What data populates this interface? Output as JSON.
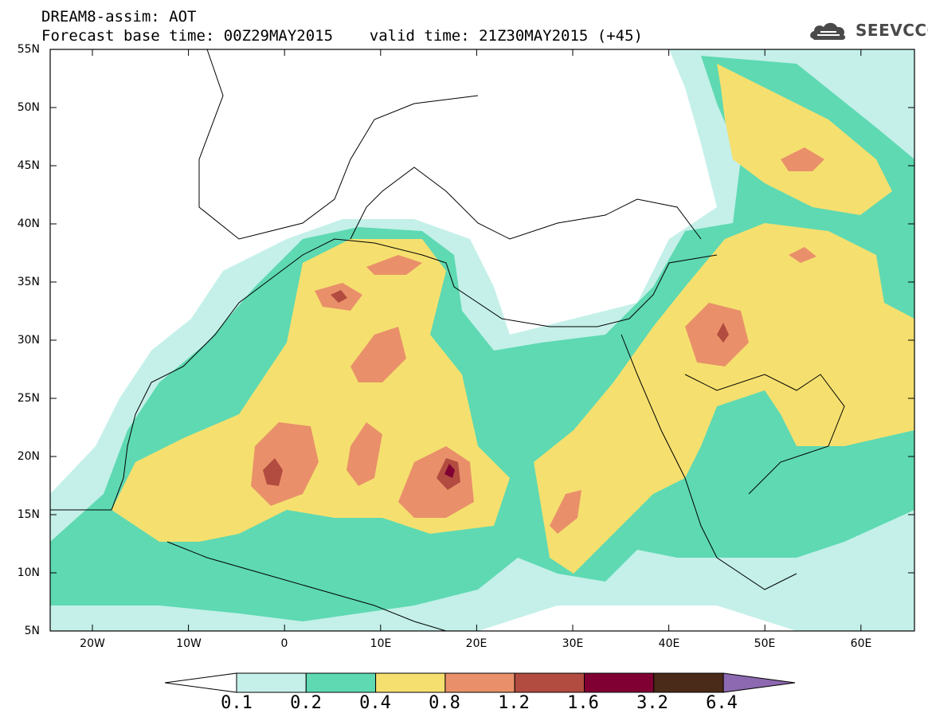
{
  "header": {
    "title_line1": "DREAM8-assim: AOT",
    "title_line2": "Forecast base time: 00Z29MAY2015    valid time: 21Z30MAY2015 (+45)"
  },
  "logo": {
    "text": "SEEVCCC",
    "icon": "cloud-icon"
  },
  "map": {
    "region": "North Africa, Middle East and Europe",
    "colors": {
      "c01": "#c4f0e9",
      "c02": "#5ed9b2",
      "c04": "#f5e06f",
      "c08": "#e9906a",
      "c12": "#b24b40",
      "c16": "#800033",
      "c32": "#4a2a18",
      "c64": "#8c69b0"
    },
    "lat_labels": [
      "55N",
      "50N",
      "45N",
      "40N",
      "35N",
      "30N",
      "25N",
      "20N",
      "15N",
      "10N",
      "5N"
    ],
    "lon_labels": [
      "20W",
      "10W",
      "0",
      "10E",
      "20E",
      "30E",
      "40E",
      "50E",
      "60E"
    ]
  },
  "colorbar": {
    "labels": [
      "0.1",
      "0.2",
      "0.4",
      "0.8",
      "1.2",
      "1.6",
      "3.2",
      "6.4"
    ],
    "colors": [
      "#c4f0e9",
      "#5ed9b2",
      "#f5e06f",
      "#e9906a",
      "#b24b40",
      "#800033",
      "#4a2a18"
    ],
    "over_color": "#8c69b0",
    "under_color": "#ffffff"
  }
}
